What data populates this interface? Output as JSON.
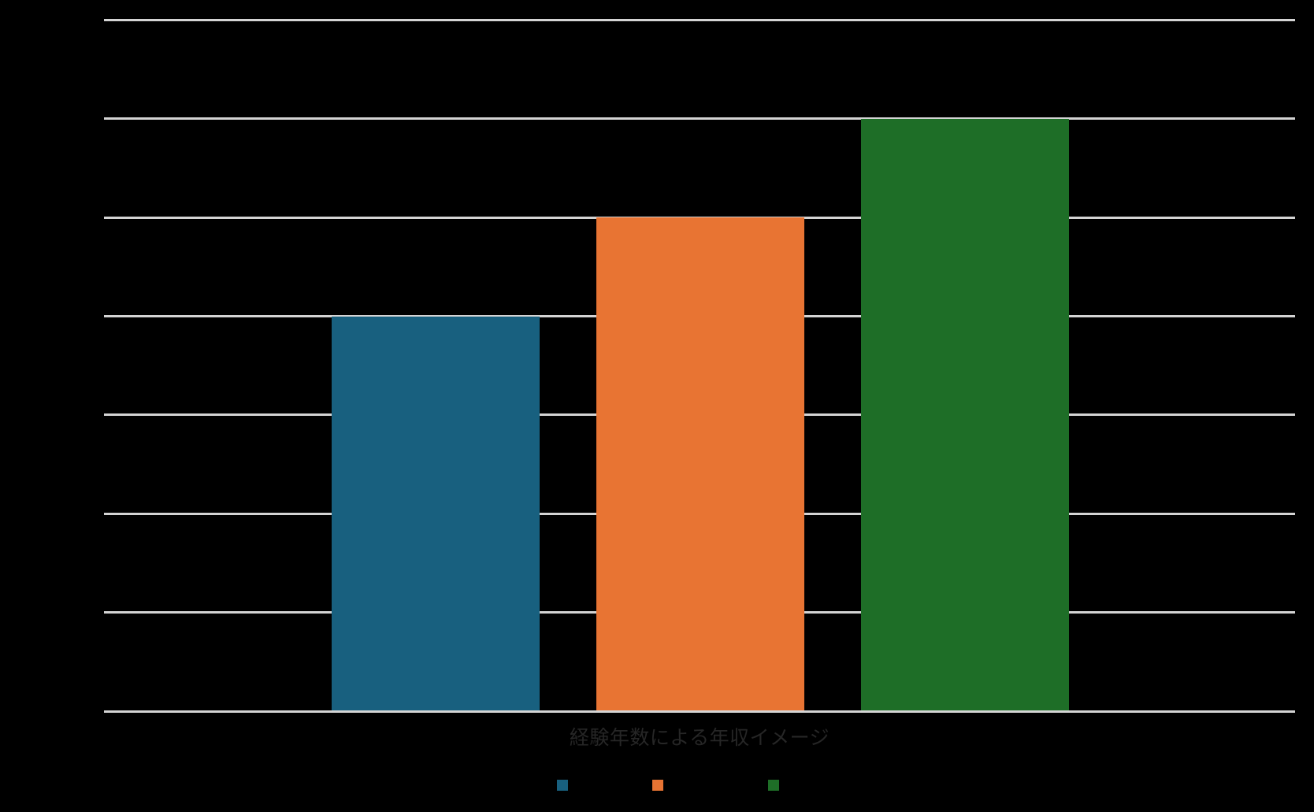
{
  "chart_data": {
    "type": "bar",
    "title": "",
    "xlabel": "経験年数による年収イメージ",
    "ylabel": "",
    "categories": [
      "",
      "",
      ""
    ],
    "series": [
      {
        "name": "",
        "values": [
          4,
          5,
          6
        ]
      }
    ],
    "bar_colors": [
      "#18607F",
      "#E87433",
      "#1E6E27"
    ],
    "ylim": [
      0,
      7
    ],
    "gridline_step": 1,
    "grid": "on",
    "tick_labels_visible": false,
    "legend": {
      "position": "bottom",
      "entries": [
        {
          "label": "",
          "color": "#18607F"
        },
        {
          "label": "",
          "color": "#E87433"
        },
        {
          "label": "",
          "color": "#1E6E27"
        }
      ]
    }
  },
  "style": {
    "background_color": "#000000",
    "gridline_color": "#D4D4D4",
    "axis_line_color": "#D4D4D4",
    "label_color": "#262626"
  }
}
